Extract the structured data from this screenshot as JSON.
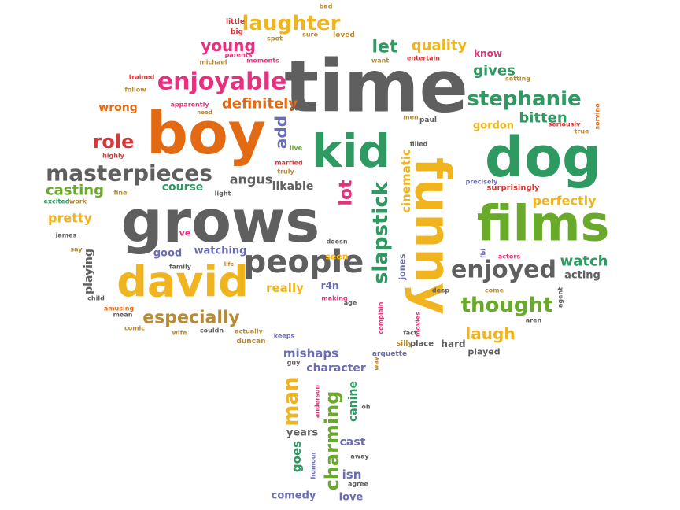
{
  "palette": {
    "orange": "#e36a12",
    "gray": "#5f5f5f",
    "green": "#2e9a62",
    "lime": "#6aaa2a",
    "yellow": "#f0b41e",
    "pink": "#e5327e",
    "purple": "#6a6cb4",
    "red": "#d53a3a",
    "brown": "#b88a32"
  },
  "words": [
    {
      "text": "time",
      "color": "gray"
    },
    {
      "text": "boy",
      "color": "orange"
    },
    {
      "text": "grows",
      "color": "gray"
    },
    {
      "text": "kid",
      "color": "green"
    },
    {
      "text": "dog",
      "color": "green"
    },
    {
      "text": "films",
      "color": "lime"
    },
    {
      "text": "funny",
      "color": "yellow"
    },
    {
      "text": "david",
      "color": "yellow"
    },
    {
      "text": "people",
      "color": "gray"
    },
    {
      "text": "masterpieces",
      "color": "gray"
    },
    {
      "text": "enjoyable",
      "color": "pink"
    },
    {
      "text": "laughter",
      "color": "yellow"
    },
    {
      "text": "stephanie",
      "color": "green"
    },
    {
      "text": "enjoyed",
      "color": "gray"
    },
    {
      "text": "thought",
      "color": "lime"
    },
    {
      "text": "slapstick",
      "color": "green"
    },
    {
      "text": "charming",
      "color": "lime"
    },
    {
      "text": "man",
      "color": "yellow"
    },
    {
      "text": "especially",
      "color": "brown"
    },
    {
      "text": "role",
      "color": "red"
    },
    {
      "text": "young",
      "color": "pink"
    },
    {
      "text": "let",
      "color": "green"
    },
    {
      "text": "quality",
      "color": "yellow"
    },
    {
      "text": "definitely",
      "color": "orange"
    },
    {
      "text": "gives",
      "color": "green"
    },
    {
      "text": "bitten",
      "color": "green"
    },
    {
      "text": "perfectly",
      "color": "yellow"
    },
    {
      "text": "watch",
      "color": "green"
    },
    {
      "text": "laugh",
      "color": "yellow"
    },
    {
      "text": "lot",
      "color": "pink"
    },
    {
      "text": "cinematic",
      "color": "yellow"
    },
    {
      "text": "casting",
      "color": "lime"
    },
    {
      "text": "pretty",
      "color": "yellow"
    },
    {
      "text": "angus",
      "color": "gray"
    },
    {
      "text": "course",
      "color": "green"
    },
    {
      "text": "likable",
      "color": "gray"
    },
    {
      "text": "add",
      "color": "purple"
    },
    {
      "text": "wrong",
      "color": "orange"
    },
    {
      "text": "gordon",
      "color": "yellow"
    },
    {
      "text": "know",
      "color": "pink"
    },
    {
      "text": "mishaps",
      "color": "purple"
    },
    {
      "text": "character",
      "color": "purple"
    },
    {
      "text": "canine",
      "color": "green"
    },
    {
      "text": "goes",
      "color": "green"
    },
    {
      "text": "years",
      "color": "gray"
    },
    {
      "text": "cast",
      "color": "purple"
    },
    {
      "text": "isn",
      "color": "purple"
    },
    {
      "text": "comedy",
      "color": "purple"
    },
    {
      "text": "love",
      "color": "purple"
    },
    {
      "text": "really",
      "color": "yellow"
    },
    {
      "text": "watching",
      "color": "purple"
    },
    {
      "text": "good",
      "color": "purple"
    },
    {
      "text": "playing",
      "color": "gray"
    },
    {
      "text": "acting",
      "color": "gray"
    },
    {
      "text": "hard",
      "color": "gray"
    },
    {
      "text": "played",
      "color": "gray"
    },
    {
      "text": "seen",
      "color": "yellow"
    },
    {
      "text": "r4n",
      "color": "purple"
    },
    {
      "text": "ve",
      "color": "pink"
    },
    {
      "text": "jones",
      "color": "purple"
    },
    {
      "text": "little",
      "color": "red"
    },
    {
      "text": "big",
      "color": "red"
    },
    {
      "text": "bad",
      "color": "brown"
    },
    {
      "text": "spot",
      "color": "brown"
    },
    {
      "text": "sure",
      "color": "brown"
    },
    {
      "text": "loved",
      "color": "brown"
    },
    {
      "text": "parents",
      "color": "pink"
    },
    {
      "text": "michael",
      "color": "brown"
    },
    {
      "text": "moments",
      "color": "pink"
    },
    {
      "text": "want",
      "color": "brown"
    },
    {
      "text": "entertain",
      "color": "red"
    },
    {
      "text": "setting",
      "color": "brown"
    },
    {
      "text": "trained",
      "color": "red"
    },
    {
      "text": "follow",
      "color": "brown"
    },
    {
      "text": "apparently",
      "color": "pink"
    },
    {
      "text": "need",
      "color": "brown"
    },
    {
      "text": "don",
      "color": "gray"
    },
    {
      "text": "men",
      "color": "brown"
    },
    {
      "text": "paul",
      "color": "gray"
    },
    {
      "text": "seriously",
      "color": "red"
    },
    {
      "text": "true",
      "color": "brown"
    },
    {
      "text": "sorvino",
      "color": "orange"
    },
    {
      "text": "highly",
      "color": "red"
    },
    {
      "text": "live",
      "color": "lime"
    },
    {
      "text": "married",
      "color": "red"
    },
    {
      "text": "truly",
      "color": "brown"
    },
    {
      "text": "filled",
      "color": "gray"
    },
    {
      "text": "fine",
      "color": "brown"
    },
    {
      "text": "excited",
      "color": "green"
    },
    {
      "text": "work",
      "color": "brown"
    },
    {
      "text": "light",
      "color": "gray"
    },
    {
      "text": "precisely",
      "color": "purple"
    },
    {
      "text": "surprisingly",
      "color": "red"
    },
    {
      "text": "james",
      "color": "gray"
    },
    {
      "text": "say",
      "color": "brown"
    },
    {
      "text": "doesn",
      "color": "gray"
    },
    {
      "text": "family",
      "color": "gray"
    },
    {
      "text": "life",
      "color": "brown"
    },
    {
      "text": "child",
      "color": "gray"
    },
    {
      "text": "amusing",
      "color": "orange"
    },
    {
      "text": "mean",
      "color": "gray"
    },
    {
      "text": "comic",
      "color": "brown"
    },
    {
      "text": "wife",
      "color": "brown"
    },
    {
      "text": "couldn",
      "color": "gray"
    },
    {
      "text": "actually",
      "color": "brown"
    },
    {
      "text": "duncan",
      "color": "brown"
    },
    {
      "text": "keeps",
      "color": "purple"
    },
    {
      "text": "fact",
      "color": "gray"
    },
    {
      "text": "complain",
      "color": "pink"
    },
    {
      "text": "deep",
      "color": "gray"
    },
    {
      "text": "come",
      "color": "brown"
    },
    {
      "text": "aren",
      "color": "gray"
    },
    {
      "text": "agent",
      "color": "gray"
    },
    {
      "text": "fbi",
      "color": "purple"
    },
    {
      "text": "actors",
      "color": "pink"
    },
    {
      "text": "silly",
      "color": "brown"
    },
    {
      "text": "place",
      "color": "gray"
    },
    {
      "text": "movies",
      "color": "pink"
    },
    {
      "text": "way",
      "color": "brown"
    },
    {
      "text": "arquette",
      "color": "purple"
    },
    {
      "text": "guy",
      "color": "gray"
    },
    {
      "text": "making",
      "color": "pink"
    },
    {
      "text": "age",
      "color": "gray"
    },
    {
      "text": "anderson",
      "color": "pink"
    },
    {
      "text": "oh",
      "color": "gray"
    },
    {
      "text": "humour",
      "color": "purple"
    },
    {
      "text": "away",
      "color": "gray"
    },
    {
      "text": "agree",
      "color": "gray"
    }
  ]
}
